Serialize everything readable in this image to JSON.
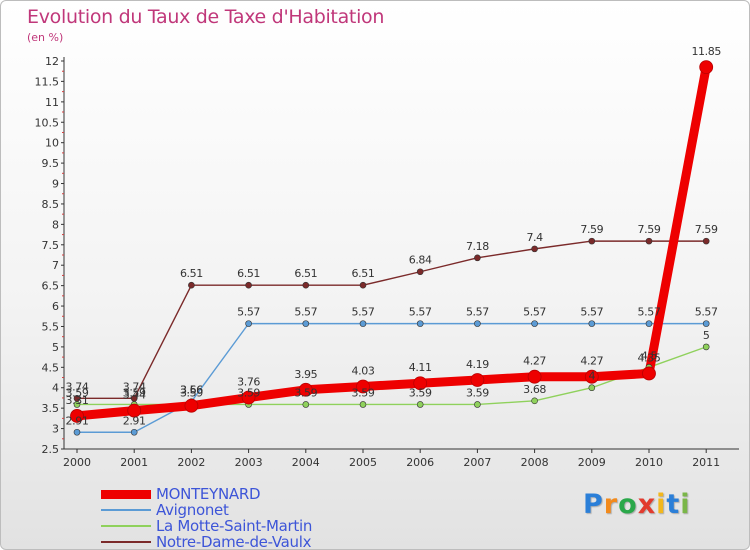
{
  "title": "Evolution du Taux de Taxe d'Habitation",
  "subtitle": "(en %)",
  "logo": {
    "text": "Proxiti",
    "letters": [
      {
        "ch": "P",
        "color": "#2b7fd8"
      },
      {
        "ch": "r",
        "color": "#f28a1c"
      },
      {
        "ch": "o",
        "color": "#2aa84a"
      },
      {
        "ch": "x",
        "color": "#e23b2e"
      },
      {
        "ch": "i",
        "color": "#f2b71c"
      },
      {
        "ch": "t",
        "color": "#2b7fd8"
      },
      {
        "ch": "i",
        "color": "#7ab648"
      }
    ]
  },
  "chart_data": {
    "type": "line",
    "title": "Evolution du Taux de Taxe d'Habitation",
    "subtitle": "(en %)",
    "x": [
      "2000",
      "2001",
      "2002",
      "2003",
      "2004",
      "2005",
      "2006",
      "2007",
      "2008",
      "2009",
      "2010",
      "2011"
    ],
    "ylim": [
      2.5,
      12
    ],
    "yticks": [
      "2.5",
      "3",
      "3.5",
      "4",
      "4.5",
      "5",
      "5.5",
      "6",
      "6.5",
      "7",
      "7.5",
      "8",
      "8.5",
      "9",
      "9.5",
      "10",
      "10.5",
      "11",
      "11.5",
      "12"
    ],
    "grid": false,
    "legend_position": "bottom-left",
    "series": [
      {
        "name": "MONTEYNARD",
        "color": "#ee0000",
        "values": [
          3.31,
          3.44,
          3.56,
          3.76,
          3.95,
          4.03,
          4.11,
          4.19,
          4.27,
          4.27,
          4.35,
          11.85
        ],
        "labels": [
          "3.31",
          "3.44",
          "3.56",
          "3.76",
          "3.95",
          "4.03",
          "4.11",
          "4.19",
          "4.27",
          "4.27",
          "4.35",
          "11.85"
        ]
      },
      {
        "name": "Avignonet",
        "color": "#5b9bd5",
        "values": [
          2.91,
          2.91,
          3.66,
          5.57,
          5.57,
          5.57,
          5.57,
          5.57,
          5.57,
          5.57,
          5.57,
          5.57
        ],
        "labels": [
          "2.91",
          "2.91",
          "3.66",
          "5.57",
          "5.57",
          "5.57",
          "5.57",
          "5.57",
          "5.57",
          "5.57",
          "5.57",
          "5.57"
        ]
      },
      {
        "name": "La Motte-Saint-Martin",
        "color": "#8fd15c",
        "values": [
          3.59,
          3.59,
          3.59,
          3.59,
          3.59,
          3.59,
          3.59,
          3.59,
          3.68,
          4,
          4.5,
          5
        ],
        "labels": [
          "3.59",
          "3.59",
          "3.59",
          "3.59",
          "3.59",
          "3.59",
          "3.59",
          "3.59",
          "3.68",
          "4",
          "4.5",
          "5"
        ]
      },
      {
        "name": "Notre-Dame-de-Vaulx",
        "color": "#7b2a2a",
        "values": [
          3.74,
          3.74,
          6.51,
          6.51,
          6.51,
          6.51,
          6.84,
          7.18,
          7.4,
          7.59,
          7.59,
          7.59
        ],
        "labels": [
          "3.74",
          "3.74",
          "6.51",
          "6.51",
          "6.51",
          "6.51",
          "6.84",
          "7.18",
          "7.4",
          "7.59",
          "7.59",
          "7.59"
        ]
      }
    ]
  }
}
